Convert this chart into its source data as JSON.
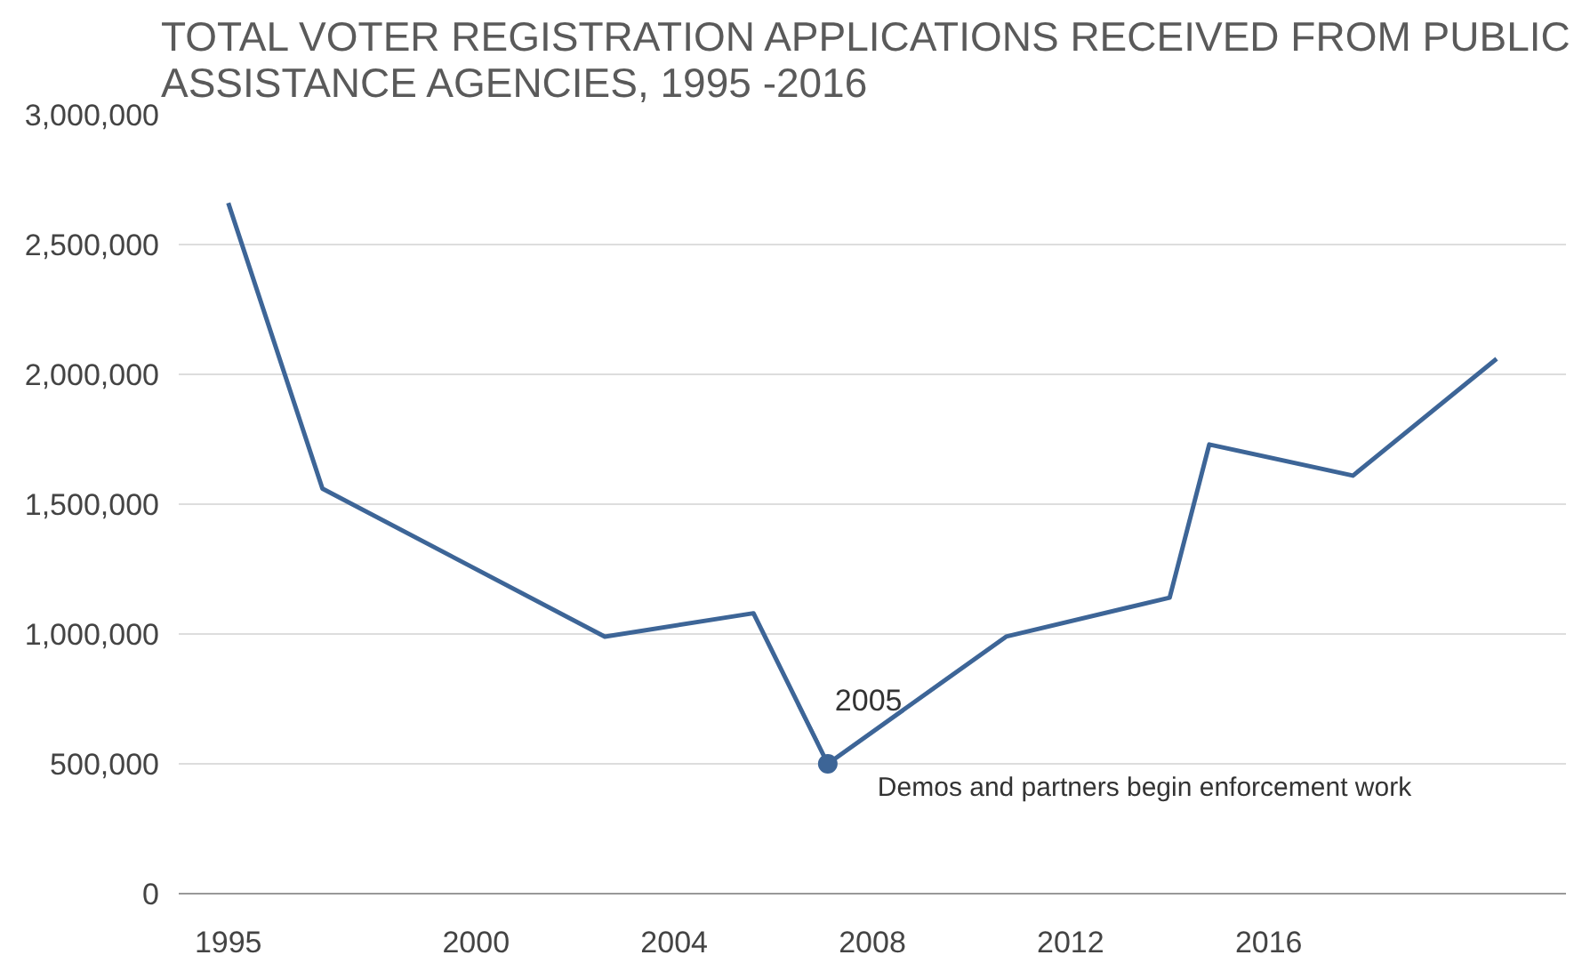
{
  "chart_data": {
    "type": "line",
    "title": "TOTAL VOTER REGISTRATION APPLICATIONS RECEIVED FROM PUBLIC ASSISTANCE AGENCIES, 1995 -2016",
    "x": [
      1995,
      1996.9,
      2002.6,
      2005.6,
      2007.1,
      2010.7,
      2014.0,
      2014.8,
      2017.7,
      2020.6
    ],
    "series": [
      {
        "color": "#3d6597",
        "values": [
          2660000,
          1560000,
          990000,
          1080000,
          500000,
          990000,
          1140000,
          1730000,
          1610000,
          2060000
        ]
      }
    ],
    "xlim": [
      1994,
      2022
    ],
    "xticks": [
      1995,
      2000,
      2004,
      2008,
      2012,
      2016
    ],
    "ylim": [
      0,
      3000000
    ],
    "yticks": [
      {
        "value": 0,
        "label": "0"
      },
      {
        "value": 500000,
        "label": "500,000"
      },
      {
        "value": 1000000,
        "label": "1,000,000"
      },
      {
        "value": 1500000,
        "label": "1,500,000"
      },
      {
        "value": 2000000,
        "label": "2,000,000"
      },
      {
        "value": 2500000,
        "label": "2,500,000"
      },
      {
        "value": 3000000,
        "label": "3,000,000"
      }
    ],
    "annotations": [
      {
        "text": "2005",
        "x": 2007.1,
        "y": 500000
      },
      {
        "text": "Demos and partners begin enforcement work",
        "x": 2007.1,
        "y": 500000
      }
    ],
    "grid": "y",
    "marker": "none",
    "line_style": "solid"
  }
}
